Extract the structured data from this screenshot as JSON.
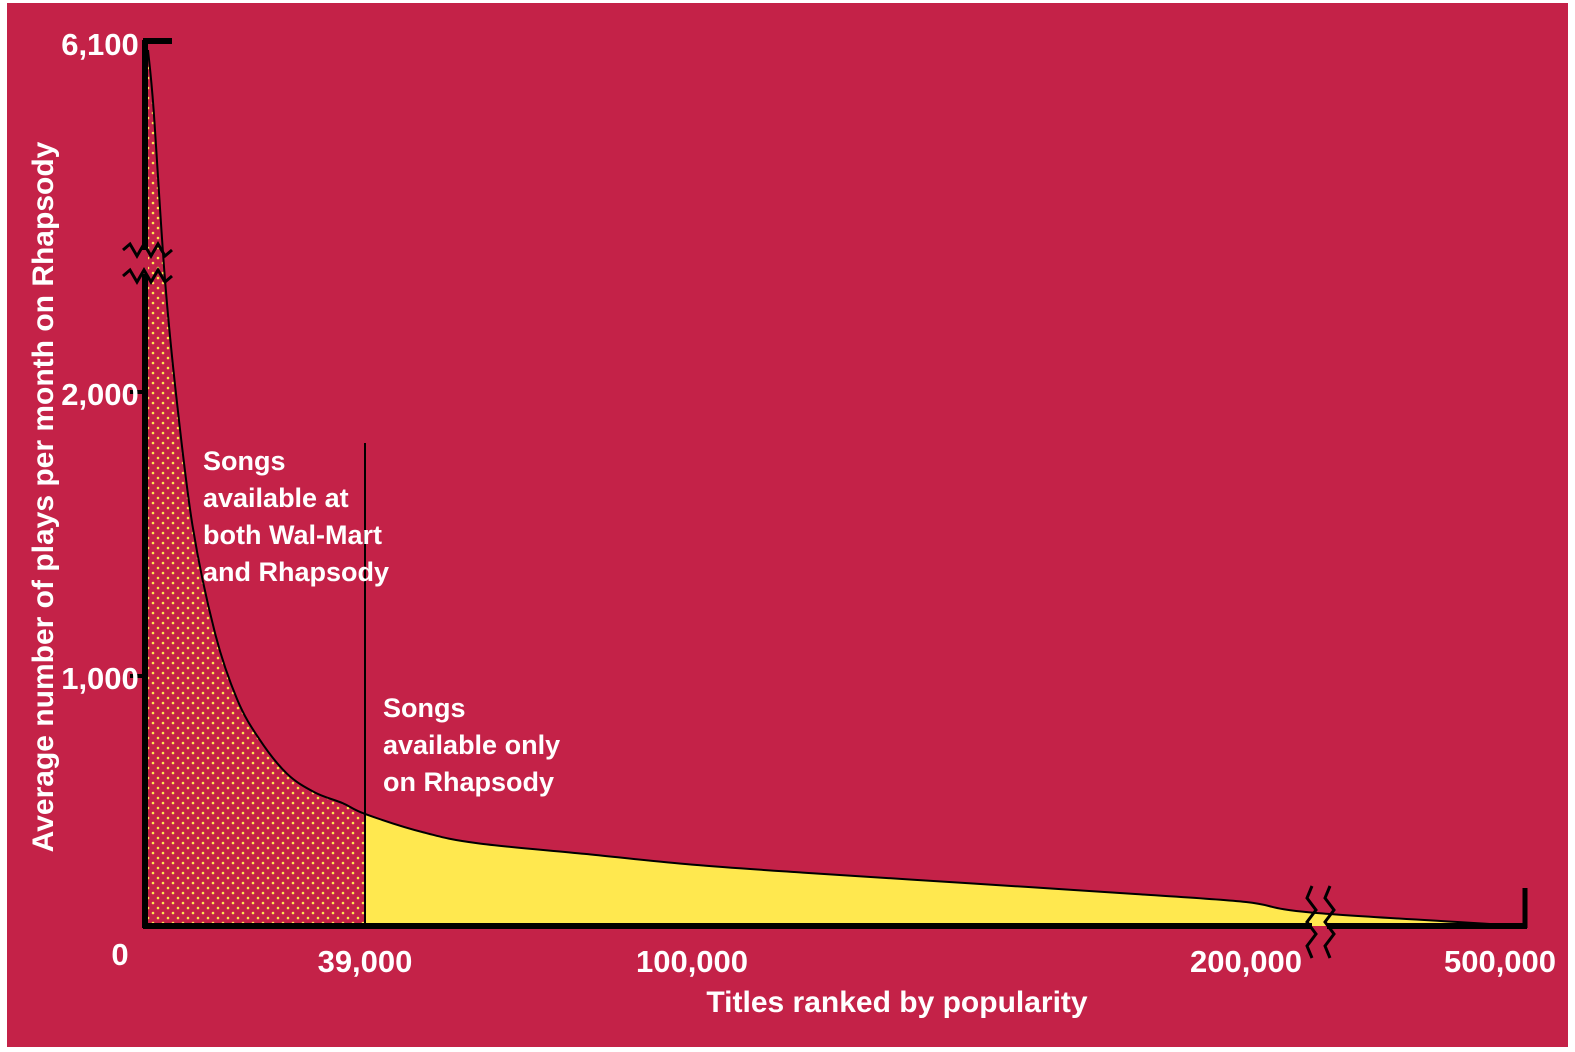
{
  "chart_data": {
    "type": "area",
    "title": "",
    "xlabel": "Titles ranked by popularity",
    "ylabel": "Average number of plays per month on Rhapsody",
    "x_ticks": [
      "0",
      "39,000",
      "100,000",
      "200,000",
      "500,000"
    ],
    "y_ticks": [
      "1,000",
      "2,000",
      "6,100"
    ],
    "axis_breaks": {
      "y": true,
      "x": true
    },
    "annotations": [
      {
        "lines": [
          "Songs",
          "available at",
          "both Wal-Mart",
          "and Rhapsody"
        ]
      },
      {
        "lines": [
          "Songs",
          "available only",
          "on Rhapsody"
        ]
      }
    ],
    "series": [
      {
        "x": [
          0,
          1000,
          3000,
          5000,
          8000,
          12000,
          16000,
          20000,
          25000,
          30000,
          35000,
          39000,
          50000,
          60000,
          80000,
          100000,
          120000,
          150000,
          180000,
          200000,
          210000,
          500000
        ],
        "y": [
          6100,
          5000,
          2400,
          2000,
          1500,
          1100,
          850,
          700,
          570,
          500,
          460,
          420,
          350,
          310,
          270,
          230,
          200,
          160,
          120,
          90,
          50,
          0
        ]
      }
    ],
    "regions": [
      {
        "from": 0,
        "to": 39000,
        "fill": "dotted"
      },
      {
        "from": 39000,
        "to": 500000,
        "fill": "solid"
      }
    ],
    "colors": {
      "background": "#c42248",
      "tail_fill": "#ffe84f",
      "dots": "#ffe84f",
      "axis": "#000000",
      "text": "#ffffff"
    }
  }
}
